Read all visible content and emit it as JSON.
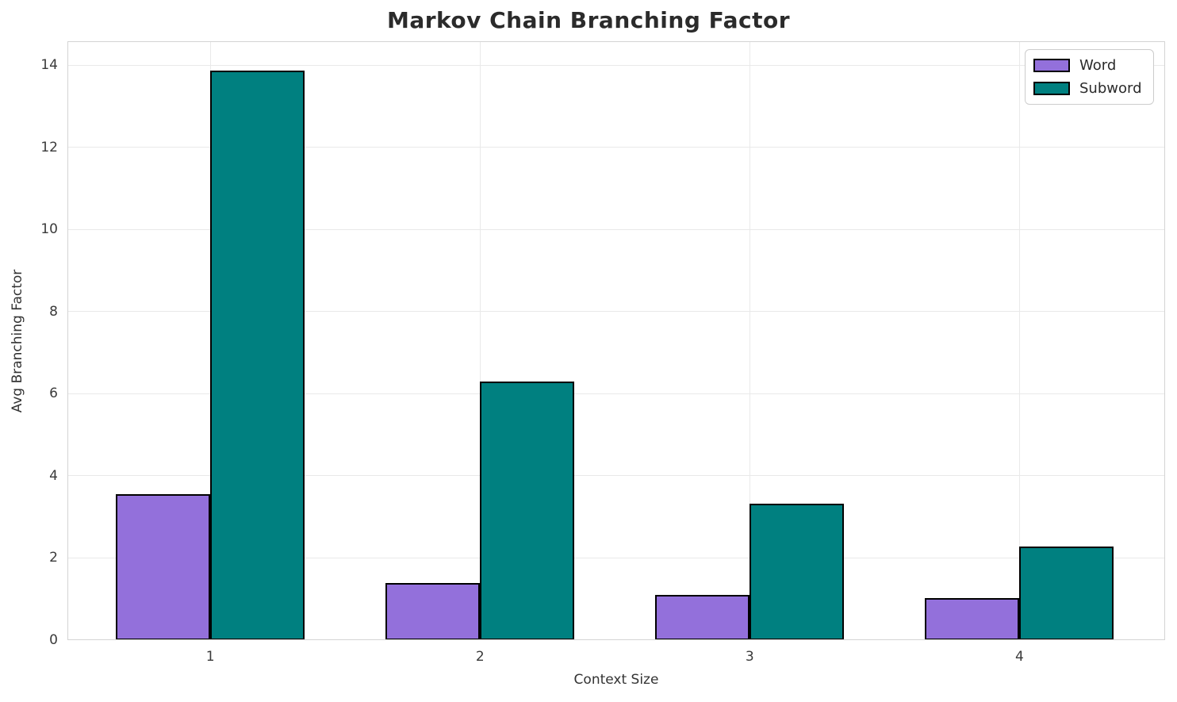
{
  "chart_data": {
    "type": "bar",
    "title": "Markov Chain Branching Factor",
    "xlabel": "Context Size",
    "ylabel": "Avg Branching Factor",
    "categories": [
      "1",
      "2",
      "3",
      "4"
    ],
    "series": [
      {
        "name": "Word",
        "color": "#9370DB",
        "values": [
          3.55,
          1.4,
          1.1,
          1.03
        ]
      },
      {
        "name": "Subword",
        "color": "#008080",
        "values": [
          13.87,
          6.3,
          3.32,
          2.28
        ]
      }
    ],
    "bar_width": 0.35,
    "bar_edge_color": "#000000",
    "ylim": [
      0,
      14.58
    ],
    "yticks": [
      0,
      2,
      4,
      6,
      8,
      10,
      12,
      14
    ],
    "grid": true,
    "gridline_color": "#e9e9e9",
    "legend_position": "upper right"
  }
}
